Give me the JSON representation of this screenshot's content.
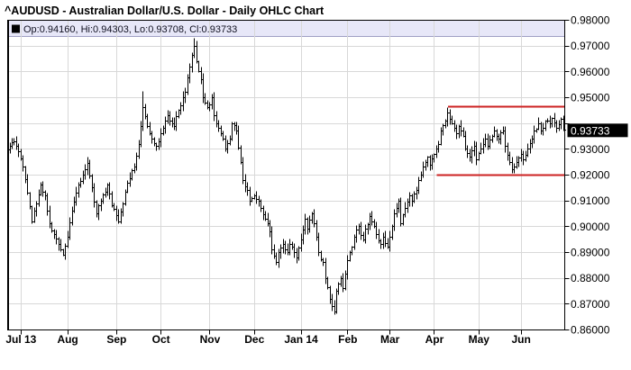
{
  "title": "^AUDUSD - Australian Dollar/U.S. Dollar - Daily OHLC Chart",
  "legend": {
    "marker": "black-square-icon",
    "text": "Op:0.94160, Hi:0.94303, Lo:0.93708, Cl:0.93733"
  },
  "price_label": "0.93733",
  "colors": {
    "background": "#ffffff",
    "bar": "#000000",
    "grid": "#d8d8d8",
    "axis": "#000000",
    "level_line": "#cc2222",
    "legend_bg": "#e7e7f8",
    "legend_border": "#a0a0c4",
    "price_label_bg": "#000000",
    "price_label_fg": "#ffffff"
  },
  "chart_data": {
    "type": "bar",
    "subtype": "ohlc-daily",
    "symbol": "^AUDUSD",
    "title": "^AUDUSD - Australian Dollar/U.S. Dollar - Daily OHLC Chart",
    "y_min": 0.86,
    "y_max": 0.98,
    "y_step": 0.01,
    "num_days": 250,
    "grid": "on",
    "x_ticks": [
      {
        "label": "Jul 13",
        "day": 5
      },
      {
        "label": "Aug",
        "day": 26
      },
      {
        "label": "Sep",
        "day": 48
      },
      {
        "label": "Oct",
        "day": 68
      },
      {
        "label": "Nov",
        "day": 90
      },
      {
        "label": "Dec",
        "day": 110
      },
      {
        "label": "Jan 14",
        "day": 131
      },
      {
        "label": "Feb",
        "day": 152
      },
      {
        "label": "Mar",
        "day": 171
      },
      {
        "label": "Apr",
        "day": 191
      },
      {
        "label": "May",
        "day": 211
      },
      {
        "label": "Jun",
        "day": 230
      }
    ],
    "y_ticks": [
      {
        "label": "0.98000",
        "value": 0.98
      },
      {
        "label": "0.97000",
        "value": 0.97
      },
      {
        "label": "0.96000",
        "value": 0.96
      },
      {
        "label": "0.95000",
        "value": 0.95
      },
      {
        "label": "0.93000",
        "value": 0.93
      },
      {
        "label": "0.92000",
        "value": 0.92
      },
      {
        "label": "0.91000",
        "value": 0.91
      },
      {
        "label": "0.90000",
        "value": 0.9
      },
      {
        "label": "0.89000",
        "value": 0.89
      },
      {
        "label": "0.88000",
        "value": 0.88
      },
      {
        "label": "0.87000",
        "value": 0.87
      },
      {
        "label": "0.86000",
        "value": 0.86
      }
    ],
    "close_path": [
      [
        0,
        0.931
      ],
      [
        2,
        0.933
      ],
      [
        4,
        0.929
      ],
      [
        6,
        0.923
      ],
      [
        8,
        0.913
      ],
      [
        10,
        0.902
      ],
      [
        12,
        0.909
      ],
      [
        14,
        0.916
      ],
      [
        16,
        0.912
      ],
      [
        18,
        0.901
      ],
      [
        20,
        0.897
      ],
      [
        22,
        0.893
      ],
      [
        24,
        0.889
      ],
      [
        26,
        0.896
      ],
      [
        28,
        0.906
      ],
      [
        30,
        0.913
      ],
      [
        33,
        0.92
      ],
      [
        35,
        0.9245
      ],
      [
        37,
        0.915
      ],
      [
        39,
        0.905
      ],
      [
        41,
        0.91
      ],
      [
        44,
        0.916
      ],
      [
        46,
        0.908
      ],
      [
        49,
        0.902
      ],
      [
        51,
        0.909
      ],
      [
        53,
        0.917
      ],
      [
        56,
        0.923
      ],
      [
        58,
        0.932
      ],
      [
        60,
        0.946
      ],
      [
        62,
        0.939
      ],
      [
        64,
        0.934
      ],
      [
        66,
        0.931
      ],
      [
        69,
        0.938
      ],
      [
        71,
        0.943
      ],
      [
        74,
        0.939
      ],
      [
        76,
        0.945
      ],
      [
        79,
        0.952
      ],
      [
        81,
        0.962
      ],
      [
        83,
        0.97
      ],
      [
        84,
        0.964
      ],
      [
        86,
        0.957
      ],
      [
        87,
        0.95
      ],
      [
        89,
        0.946
      ],
      [
        91,
        0.95
      ],
      [
        92,
        0.943
      ],
      [
        94,
        0.938
      ],
      [
        96,
        0.934
      ],
      [
        97,
        0.93
      ],
      [
        99,
        0.934
      ],
      [
        100,
        0.94
      ],
      [
        102,
        0.937
      ],
      [
        104,
        0.925
      ],
      [
        105,
        0.918
      ],
      [
        107,
        0.914
      ],
      [
        108,
        0.91
      ],
      [
        110,
        0.912
      ],
      [
        112,
        0.91
      ],
      [
        113,
        0.907
      ],
      [
        115,
        0.903
      ],
      [
        117,
        0.898
      ],
      [
        118,
        0.891
      ],
      [
        120,
        0.886
      ],
      [
        121,
        0.89
      ],
      [
        123,
        0.893
      ],
      [
        125,
        0.89
      ],
      [
        126,
        0.893
      ],
      [
        128,
        0.89
      ],
      [
        129,
        0.888
      ],
      [
        131,
        0.895
      ],
      [
        133,
        0.903
      ],
      [
        134,
        0.899
      ],
      [
        136,
        0.905
      ],
      [
        138,
        0.896
      ],
      [
        139,
        0.89
      ],
      [
        141,
        0.886
      ],
      [
        142,
        0.88
      ],
      [
        144,
        0.872
      ],
      [
        146,
        0.867
      ],
      [
        147,
        0.875
      ],
      [
        149,
        0.88
      ],
      [
        150,
        0.876
      ],
      [
        152,
        0.887
      ],
      [
        154,
        0.892
      ],
      [
        155,
        0.896
      ],
      [
        157,
        0.9
      ],
      [
        159,
        0.895
      ],
      [
        160,
        0.899
      ],
      [
        162,
        0.904
      ],
      [
        163,
        0.902
      ],
      [
        165,
        0.897
      ],
      [
        167,
        0.893
      ],
      [
        168,
        0.896
      ],
      [
        170,
        0.892
      ],
      [
        171,
        0.896
      ],
      [
        173,
        0.905
      ],
      [
        175,
        0.91
      ],
      [
        176,
        0.901
      ],
      [
        178,
        0.907
      ],
      [
        180,
        0.912
      ],
      [
        181,
        0.91
      ],
      [
        183,
        0.914
      ],
      [
        184,
        0.918
      ],
      [
        186,
        0.923
      ],
      [
        188,
        0.927
      ],
      [
        189,
        0.924
      ],
      [
        191,
        0.928
      ],
      [
        193,
        0.932
      ],
      [
        194,
        0.937
      ],
      [
        196,
        0.941
      ],
      [
        197,
        0.944
      ],
      [
        199,
        0.94
      ],
      [
        201,
        0.936
      ],
      [
        202,
        0.939
      ],
      [
        204,
        0.935
      ],
      [
        205,
        0.93
      ],
      [
        207,
        0.927
      ],
      [
        209,
        0.931
      ],
      [
        210,
        0.926
      ],
      [
        212,
        0.93
      ],
      [
        214,
        0.934
      ],
      [
        215,
        0.931
      ],
      [
        217,
        0.935
      ],
      [
        218,
        0.937
      ],
      [
        220,
        0.934
      ],
      [
        222,
        0.937
      ],
      [
        223,
        0.931
      ],
      [
        225,
        0.925
      ],
      [
        226,
        0.922
      ],
      [
        228,
        0.925
      ],
      [
        230,
        0.928
      ],
      [
        231,
        0.926
      ],
      [
        233,
        0.93
      ],
      [
        235,
        0.934
      ],
      [
        236,
        0.937
      ],
      [
        238,
        0.94
      ],
      [
        239,
        0.937
      ],
      [
        241,
        0.941
      ],
      [
        243,
        0.94
      ],
      [
        244,
        0.942
      ],
      [
        246,
        0.938
      ],
      [
        248,
        0.9416
      ],
      [
        249,
        0.93733
      ]
    ],
    "spikes": [
      {
        "day": 24,
        "low": 0.8885
      },
      {
        "day": 60,
        "high": 0.9525
      },
      {
        "day": 83,
        "high": 0.973
      },
      {
        "day": 120,
        "low": 0.885
      },
      {
        "day": 146,
        "low": 0.866
      },
      {
        "day": 197,
        "high": 0.9461
      },
      {
        "day": 226,
        "low": 0.9206
      }
    ],
    "last_bar": {
      "open": 0.9416,
      "high": 0.94303,
      "low": 0.93708,
      "close": 0.93733
    },
    "levels": [
      {
        "name": "resistance",
        "value": 0.9465,
        "start_day": 197
      },
      {
        "name": "support",
        "value": 0.92,
        "start_day": 192
      }
    ]
  }
}
